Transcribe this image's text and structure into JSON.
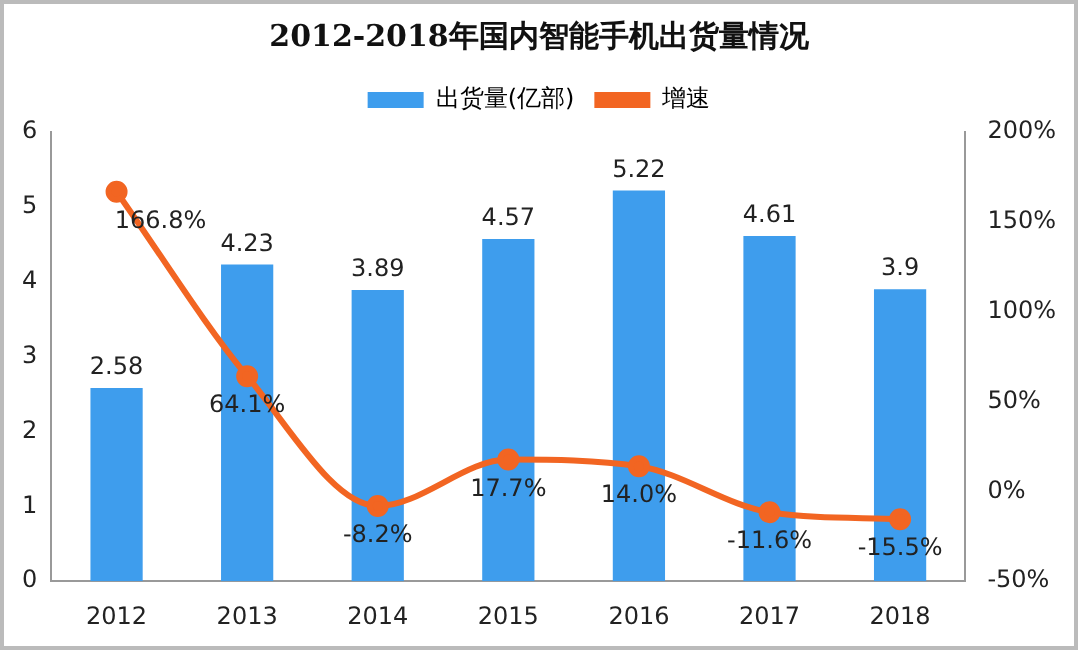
{
  "chart_data": {
    "type": "bar",
    "title": "2012-2018年国内智能手机出货量情况",
    "categories": [
      "2012",
      "2013",
      "2014",
      "2015",
      "2016",
      "2017",
      "2018"
    ],
    "series": [
      {
        "name": "出货量(亿部)",
        "color": "#3e9ded",
        "values": [
          2.58,
          4.23,
          3.89,
          4.57,
          5.22,
          4.61,
          3.9
        ],
        "value_labels": [
          "2.58",
          "4.23",
          "3.89",
          "4.57",
          "5.22",
          "4.61",
          "3.9"
        ]
      },
      {
        "name": "增速",
        "type": "line",
        "axis": "y2",
        "color": "#f26522",
        "marker": "circle",
        "values": [
          166.8,
          64.1,
          -8.2,
          17.7,
          14.0,
          -11.6,
          -15.5
        ],
        "value_labels": [
          "166.8%",
          "64.1%",
          "-8.2%",
          "17.7%",
          "14.0%",
          "-11.6%",
          "-15.5%"
        ]
      }
    ],
    "ylim": [
      0,
      6
    ],
    "yticks": [
      0,
      1,
      2,
      3,
      4,
      5,
      6
    ],
    "y2lim": [
      -50,
      200
    ],
    "y2ticks": [
      {
        "value": -50,
        "label": "-50%"
      },
      {
        "value": 0,
        "label": "0%"
      },
      {
        "value": 50,
        "label": "50%"
      },
      {
        "value": 100,
        "label": "100%"
      },
      {
        "value": 150,
        "label": "150%"
      },
      {
        "value": 200,
        "label": "200%"
      }
    ],
    "grid": false,
    "legend": "top"
  }
}
